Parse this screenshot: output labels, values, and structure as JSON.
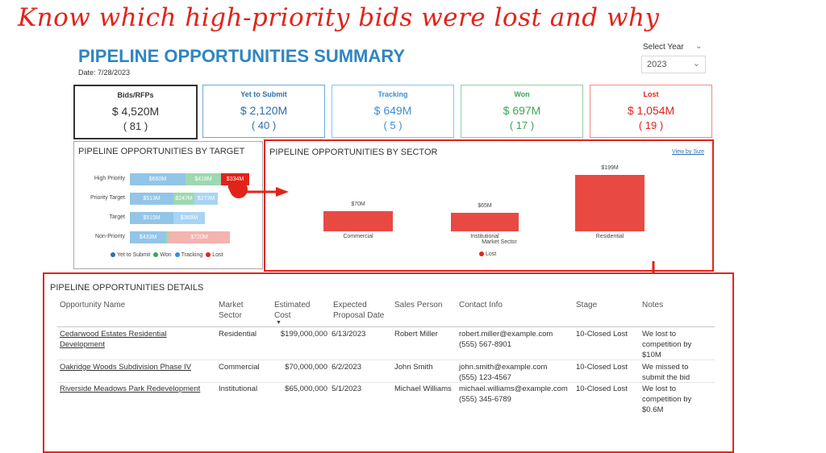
{
  "headline": "Know which high-priority bids were lost and why",
  "header": {
    "title": "PIPELINE OPPORTUNITIES SUMMARY",
    "date": "Date: 7/28/2023",
    "year_label": "Select Year",
    "year_value": "2023"
  },
  "kpis": [
    {
      "label": "Bids/RFPs",
      "value": "$ 4,520M",
      "count": "( 81 )",
      "color": "#333333",
      "border": "#333333"
    },
    {
      "label": "Yet to Submit",
      "value": "$ 2,120M",
      "count": "( 40 )",
      "color": "#2f6fa7",
      "border": "#6aa8d8"
    },
    {
      "label": "Tracking",
      "value": "$ 649M",
      "count": "( 5 )",
      "color": "#3b8fd8",
      "border": "#8fc3ee"
    },
    {
      "label": "Won",
      "value": "$ 697M",
      "count": "( 17 )",
      "color": "#3aa55b",
      "border": "#8fd0a3"
    },
    {
      "label": "Lost",
      "value": "$ 1,054M",
      "count": "( 19 )",
      "color": "#e2231a",
      "border": "#f08a86"
    }
  ],
  "target_chart": {
    "title": "PIPELINE OPPORTUNITIES BY TARGET",
    "rows": [
      {
        "label": "High Priority",
        "segments": [
          {
            "text": "$660M",
            "value": 660,
            "color": "#92c5e8"
          },
          {
            "text": "$418M",
            "value": 418,
            "color": "#9ed8b0"
          },
          {
            "text": "$334M",
            "value": 334,
            "color": "#e2231a"
          }
        ]
      },
      {
        "label": "Priority Target",
        "segments": [
          {
            "text": "$513M",
            "value": 513,
            "color": "#92c5e8"
          },
          {
            "text": "$247M",
            "value": 247,
            "color": "#9ed8b0"
          },
          {
            "text": "$273M",
            "value": 273,
            "color": "#a8d4f5"
          }
        ]
      },
      {
        "label": "Target",
        "segments": [
          {
            "text": "$515M",
            "value": 515,
            "color": "#92c5e8"
          },
          {
            "text": "$369M",
            "value": 369,
            "color": "#a8d4f5"
          }
        ]
      },
      {
        "label": "Non-Priority",
        "segments": [
          {
            "text": "$433M",
            "value": 433,
            "color": "#92c5e8"
          },
          {
            "text": "",
            "value": 30,
            "color": "#9ed8b0"
          },
          {
            "text": "$720M",
            "value": 720,
            "color": "#f4b3b0"
          }
        ]
      }
    ],
    "legend": [
      {
        "label": "Yet to Submit",
        "color": "#2f6fa7"
      },
      {
        "label": "Won",
        "color": "#3aa55b"
      },
      {
        "label": "Tracking",
        "color": "#3b8fd8"
      },
      {
        "label": "Lost",
        "color": "#e2231a"
      }
    ]
  },
  "chart_data": {
    "type": "bar",
    "title": "PIPELINE OPPORTUNITIES BY SECTOR",
    "categories": [
      "Commercial",
      "Institutional",
      "Residential"
    ],
    "values": [
      70,
      65,
      199
    ],
    "value_labels": [
      "$70M",
      "$65M",
      "$199M"
    ],
    "xlabel": "Market Sector",
    "ylabel": "",
    "legend": "Lost",
    "link": "View by Size",
    "bar_color": "#e84a43"
  },
  "details": {
    "title": "PIPELINE OPPORTUNITIES DETAILS",
    "columns": [
      "Opportunity Name",
      "Market Sector",
      "Estimated Cost",
      "Expected Proposal Date",
      "Sales Person",
      "Contact Info",
      "Stage",
      "Notes"
    ],
    "rows": [
      {
        "name": "Cedarwood Estates Residential Development",
        "sector": "Residential",
        "cost": "$199,000,000",
        "date": "6/13/2023",
        "person": "Robert Miller",
        "email": "robert.miller@example.com",
        "phone": "(555) 567-8901",
        "stage": "10-Closed Lost",
        "notes": "We lost to competition by $10M"
      },
      {
        "name": "Oakridge Woods Subdivision Phase IV",
        "sector": "Commercial",
        "cost": "$70,000,000",
        "date": "6/2/2023",
        "person": "John Smith",
        "email": "john.smith@example.com",
        "phone": "(555) 123-4567",
        "stage": "10-Closed Lost",
        "notes": "We missed to submit the bid"
      },
      {
        "name": "Riverside Meadows Park Redevelopment",
        "sector": "Institutional",
        "cost": "$65,000,000",
        "date": "5/1/2023",
        "person": "Michael Williams",
        "email": "michael.williams@example.com",
        "phone": "(555) 345-6789",
        "stage": "10-Closed Lost",
        "notes": "We lost to competition by $0.6M"
      }
    ]
  }
}
